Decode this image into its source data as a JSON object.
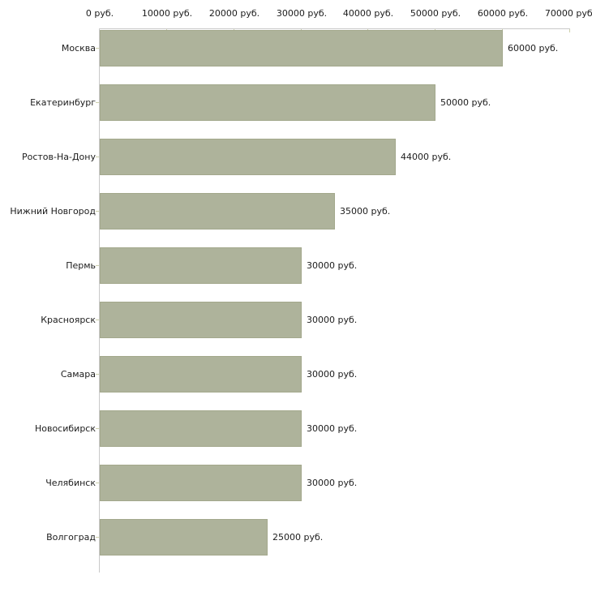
{
  "chart_data": {
    "type": "bar",
    "orientation": "horizontal",
    "title": "",
    "xlabel": "",
    "ylabel": "",
    "unit": "руб.",
    "categories": [
      "Москва",
      "Екатеринбург",
      "Ростов-На-Дону",
      "Нижний Новгород",
      "Пермь",
      "Красноярск",
      "Самара",
      "Новосибирск",
      "Челябинск",
      "Волгоград"
    ],
    "values": [
      60000,
      50000,
      44000,
      35000,
      30000,
      30000,
      30000,
      30000,
      30000,
      25000
    ],
    "value_labels": [
      "60000 руб.",
      "50000 руб.",
      "44000 руб.",
      "35000 руб.",
      "30000 руб.",
      "30000 руб.",
      "30000 руб.",
      "30000 руб.",
      "30000 руб.",
      "25000 руб."
    ],
    "x_axis": {
      "position": "top",
      "min": 0,
      "max": 70000,
      "ticks": [
        0,
        10000,
        20000,
        30000,
        40000,
        50000,
        60000,
        70000
      ],
      "tick_labels": [
        "0 руб.",
        "10000 руб.",
        "20000 руб.",
        "30000 руб.",
        "40000 руб.",
        "50000 руб.",
        "60000 руб.",
        "70000 руб."
      ]
    },
    "grid": false,
    "legend": false,
    "colors": {
      "bar_fill": "#aeb39b",
      "bar_border": "#a3a88c",
      "axis_line": "#c9c9c9",
      "tick_mark": "#cdd0ab",
      "label_text": "#1c1c1c",
      "background": "#ffffff"
    }
  }
}
